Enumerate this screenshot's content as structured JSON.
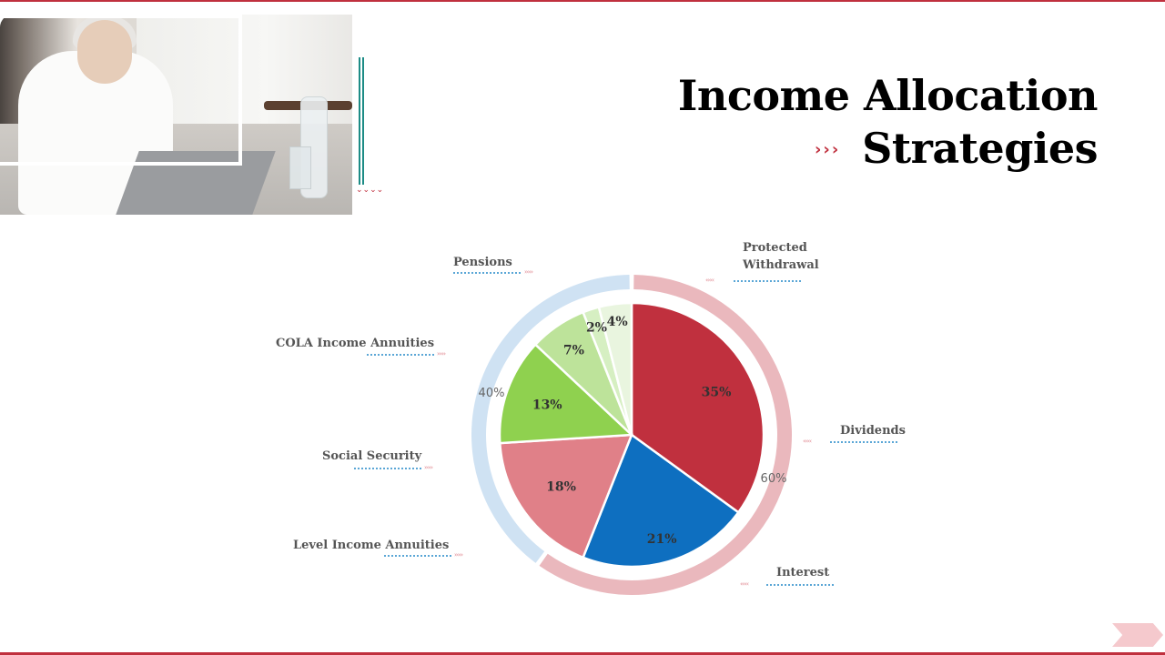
{
  "title": {
    "line1": "Income Allocation",
    "line2": "Strategies",
    "arrows": "›››"
  },
  "decor": {
    "vertical_chevrons": "⌄⌄⌄⌄"
  },
  "colors": {
    "accent_red": "#c0303e",
    "teal": "#1d8c86",
    "outer_ring_left": "#cfe2f3",
    "outer_ring_right": "#eab8bd",
    "label_underline": "#5aa6d6"
  },
  "labels": {
    "pensions": "Pensions",
    "cola": "COLA Income Annuities",
    "social_security": "Social Security",
    "level": "Level Income Annuities",
    "protected": [
      "Protected",
      "Withdrawal"
    ],
    "dividends": "Dividends",
    "interest": "Interest",
    "chev_right": "›››››",
    "chev_left": "‹‹‹‹‹"
  },
  "chart_data": {
    "type": "pie",
    "title": "",
    "inner": {
      "categories": [
        "Protected Withdrawal",
        "Dividends",
        "Interest",
        "Level Income Annuities",
        "Social Security",
        "COLA Income Annuities",
        "Pensions"
      ],
      "slices": [
        {
          "label": "35%",
          "value": 35,
          "color": "#c0303e"
        },
        {
          "label": "21%",
          "value": 21,
          "color": "#0e6fc0"
        },
        {
          "label": "18%",
          "value": 18,
          "color": "#e08088"
        },
        {
          "label": "13%",
          "value": 13,
          "color": "#8fd14f"
        },
        {
          "label": "7%",
          "value": 7,
          "color": "#bde39a"
        },
        {
          "label": "2%",
          "value": 2,
          "color": "#d6efc2"
        },
        {
          "label": "4%",
          "value": 4,
          "color": "#e9f5df"
        }
      ]
    },
    "outer": [
      {
        "label": "60%",
        "value": 60,
        "color": "#eab8bd"
      },
      {
        "label": "40%",
        "value": 40,
        "color": "#cfe2f3"
      }
    ]
  }
}
